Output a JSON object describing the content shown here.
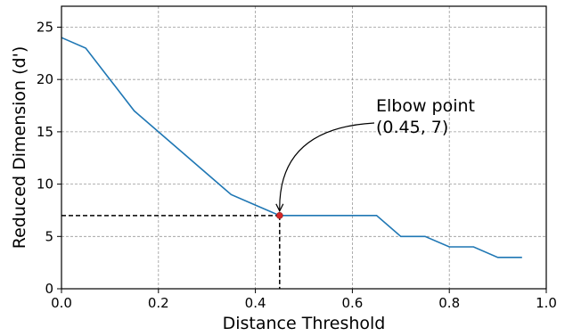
{
  "chart_data": {
    "type": "line",
    "xlabel": "Distance Threshold",
    "ylabel": "Reduced Dimension (d')",
    "xlim": [
      0.0,
      1.0
    ],
    "ylim": [
      0,
      27
    ],
    "x_ticks": [
      "0.0",
      "0.2",
      "0.4",
      "0.6",
      "0.8",
      "1.0"
    ],
    "y_ticks": [
      "0",
      "5",
      "10",
      "15",
      "20",
      "25"
    ],
    "grid": true,
    "series": [
      {
        "color": "#1f77b4",
        "x": [
          0.0,
          0.05,
          0.1,
          0.15,
          0.2,
          0.25,
          0.3,
          0.35,
          0.4,
          0.45,
          0.5,
          0.55,
          0.6,
          0.65,
          0.7,
          0.75,
          0.8,
          0.85,
          0.9,
          0.95
        ],
        "y": [
          24,
          23,
          20,
          17,
          15,
          13,
          11,
          9,
          8,
          7,
          7,
          7,
          7,
          7,
          5,
          5,
          4,
          4,
          3,
          3
        ]
      }
    ],
    "annotation": {
      "text_line1": "Elbow point",
      "text_line2": "(0.45, 7)",
      "point": [
        0.45,
        7
      ],
      "marker_color": "#d62728"
    }
  }
}
